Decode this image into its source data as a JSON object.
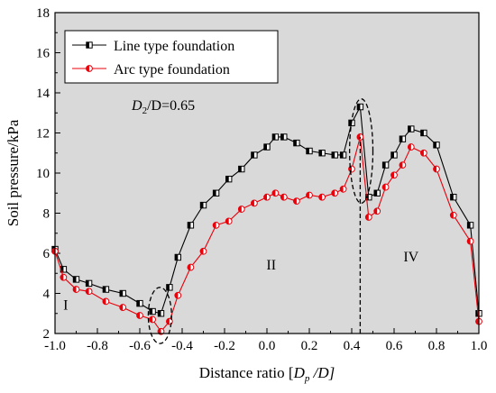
{
  "chart_data": {
    "type": "line",
    "xlabel": {
      "main": "Distance ratio [",
      "var": "D",
      "sub": "p",
      "tail": " /D]"
    },
    "ylabel": "Soil pressure/kPa",
    "xlim": [
      -1.0,
      1.0
    ],
    "ylim": [
      2,
      18
    ],
    "x_ticks": [
      -1.0,
      -0.8,
      -0.6,
      -0.4,
      -0.2,
      0.0,
      0.2,
      0.4,
      0.6,
      0.8,
      1.0
    ],
    "x_tick_labels": [
      "-1.0",
      "-0.8",
      "-0.6",
      "-0.4",
      "-0.2",
      "0.0",
      "0.2",
      "0.4",
      "0.6",
      "0.8",
      "1.0"
    ],
    "y_ticks": [
      2,
      4,
      6,
      8,
      10,
      12,
      14,
      16,
      18
    ],
    "y_tick_labels": [
      "2",
      "4",
      "6",
      "8",
      "10",
      "12",
      "14",
      "16",
      "18"
    ],
    "legend_position": "top-left",
    "background_color": "#d9d9d9",
    "series": [
      {
        "name": "Line type foundation",
        "color": "#000000",
        "marker": "half-filled-square",
        "x": [
          -1.0,
          -0.96,
          -0.9,
          -0.84,
          -0.76,
          -0.68,
          -0.6,
          -0.54,
          -0.5,
          -0.46,
          -0.42,
          -0.36,
          -0.3,
          -0.24,
          -0.18,
          -0.12,
          -0.06,
          0.0,
          0.04,
          0.08,
          0.14,
          0.2,
          0.26,
          0.32,
          0.36,
          0.4,
          0.44,
          0.48,
          0.52,
          0.56,
          0.6,
          0.64,
          0.68,
          0.74,
          0.8,
          0.88,
          0.96,
          1.0
        ],
        "y": [
          6.2,
          5.2,
          4.7,
          4.5,
          4.2,
          4.0,
          3.5,
          3.1,
          3.0,
          4.3,
          5.8,
          7.4,
          8.4,
          9.0,
          9.7,
          10.2,
          10.9,
          11.3,
          11.8,
          11.8,
          11.5,
          11.1,
          11.0,
          10.9,
          10.9,
          12.5,
          13.3,
          8.8,
          9.0,
          10.4,
          10.9,
          11.7,
          12.2,
          12.0,
          11.4,
          8.8,
          7.4,
          3.0
        ]
      },
      {
        "name": "Arc type foundation",
        "color": "#e8000b",
        "marker": "half-filled-circle",
        "x": [
          -1.0,
          -0.96,
          -0.9,
          -0.84,
          -0.76,
          -0.68,
          -0.6,
          -0.54,
          -0.5,
          -0.46,
          -0.42,
          -0.36,
          -0.3,
          -0.24,
          -0.18,
          -0.12,
          -0.06,
          0.0,
          0.04,
          0.08,
          0.14,
          0.2,
          0.26,
          0.32,
          0.36,
          0.4,
          0.44,
          0.48,
          0.52,
          0.56,
          0.6,
          0.64,
          0.68,
          0.74,
          0.8,
          0.88,
          0.96,
          1.0
        ],
        "y": [
          6.1,
          4.8,
          4.2,
          4.1,
          3.6,
          3.3,
          2.9,
          2.7,
          2.1,
          2.6,
          3.9,
          5.3,
          6.1,
          7.4,
          7.6,
          8.2,
          8.5,
          8.8,
          9.0,
          8.8,
          8.6,
          8.9,
          8.8,
          9.0,
          9.2,
          10.2,
          11.8,
          7.8,
          8.1,
          9.3,
          9.9,
          10.4,
          11.3,
          11.0,
          10.2,
          7.9,
          6.6,
          2.6
        ]
      }
    ],
    "annotations": {
      "ratio_var": "D",
      "ratio_sub": "2",
      "ratio_tail": "/D=0.65",
      "zone_labels": [
        {
          "text": "I",
          "x": -0.95,
          "y": 3.2
        },
        {
          "text": "II",
          "x": 0.02,
          "y": 5.2
        },
        {
          "text": "IV",
          "x": 0.68,
          "y": 5.6
        }
      ],
      "ellipses": [
        {
          "cx": -0.505,
          "cy": 2.9,
          "rx": 0.055,
          "ry": 1.4
        },
        {
          "cx": 0.445,
          "cy": 11.1,
          "rx": 0.055,
          "ry": 2.6
        }
      ],
      "vertical_dash_x": 0.44
    }
  }
}
